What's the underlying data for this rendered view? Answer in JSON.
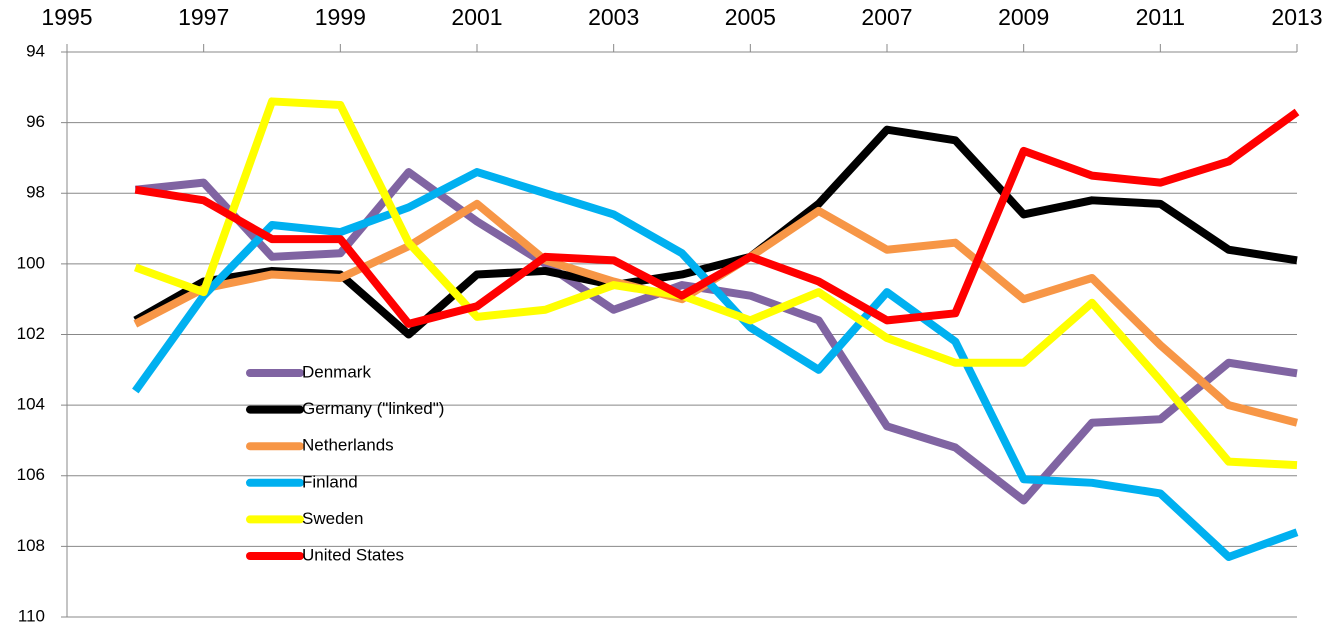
{
  "chart_data": {
    "type": "line",
    "x": [
      1996,
      1997,
      1998,
      1999,
      2000,
      2001,
      2002,
      2003,
      2004,
      2005,
      2006,
      2007,
      2008,
      2009,
      2010,
      2011,
      2012,
      2013
    ],
    "series": [
      {
        "name": "Denmark",
        "color": "#8064a2",
        "values": [
          97.9,
          97.7,
          99.8,
          99.7,
          97.4,
          98.8,
          100.0,
          101.3,
          100.6,
          100.9,
          101.6,
          104.6,
          105.2,
          106.7,
          104.5,
          104.4,
          102.8,
          103.1
        ]
      },
      {
        "name": "Germany (\"linked\")",
        "color": "#000000",
        "values": [
          101.6,
          100.5,
          100.2,
          100.3,
          102.0,
          100.3,
          100.2,
          100.6,
          100.3,
          99.8,
          98.3,
          96.2,
          96.5,
          98.6,
          98.2,
          98.3,
          99.6,
          99.9
        ]
      },
      {
        "name": "Netherlands",
        "color": "#f79646",
        "values": [
          101.7,
          100.7,
          100.3,
          100.4,
          99.5,
          98.3,
          99.9,
          100.5,
          101.0,
          99.8,
          98.5,
          99.6,
          99.4,
          101.0,
          100.4,
          102.3,
          104.0,
          104.5
        ]
      },
      {
        "name": "Finland",
        "color": "#00b0f0",
        "values": [
          103.6,
          100.9,
          98.9,
          99.1,
          98.4,
          97.4,
          98.0,
          98.6,
          99.7,
          101.8,
          103.0,
          100.8,
          102.2,
          106.1,
          106.2,
          106.5,
          108.3,
          107.6
        ]
      },
      {
        "name": "Sweden",
        "color": "#ffff00",
        "values": [
          100.1,
          100.8,
          95.4,
          95.5,
          99.4,
          101.5,
          101.3,
          100.6,
          100.9,
          101.6,
          100.8,
          102.1,
          102.8,
          102.8,
          101.1,
          103.3,
          105.6,
          105.7
        ]
      },
      {
        "name": "United States",
        "color": "#ff0000",
        "values": [
          97.9,
          98.2,
          99.3,
          99.3,
          101.7,
          101.2,
          99.8,
          99.9,
          100.9,
          99.8,
          100.5,
          101.6,
          101.4,
          96.8,
          97.5,
          97.7,
          97.1,
          95.7
        ]
      }
    ],
    "xlim": [
      1995,
      2013
    ],
    "xticks": [
      1995,
      1997,
      1999,
      2001,
      2003,
      2005,
      2007,
      2009,
      2011,
      2013
    ],
    "ylim": [
      94,
      110
    ],
    "yticks": [
      94,
      96,
      98,
      100,
      102,
      104,
      106,
      108,
      110
    ],
    "y_inverted": true,
    "grid": true,
    "legend": "left"
  }
}
